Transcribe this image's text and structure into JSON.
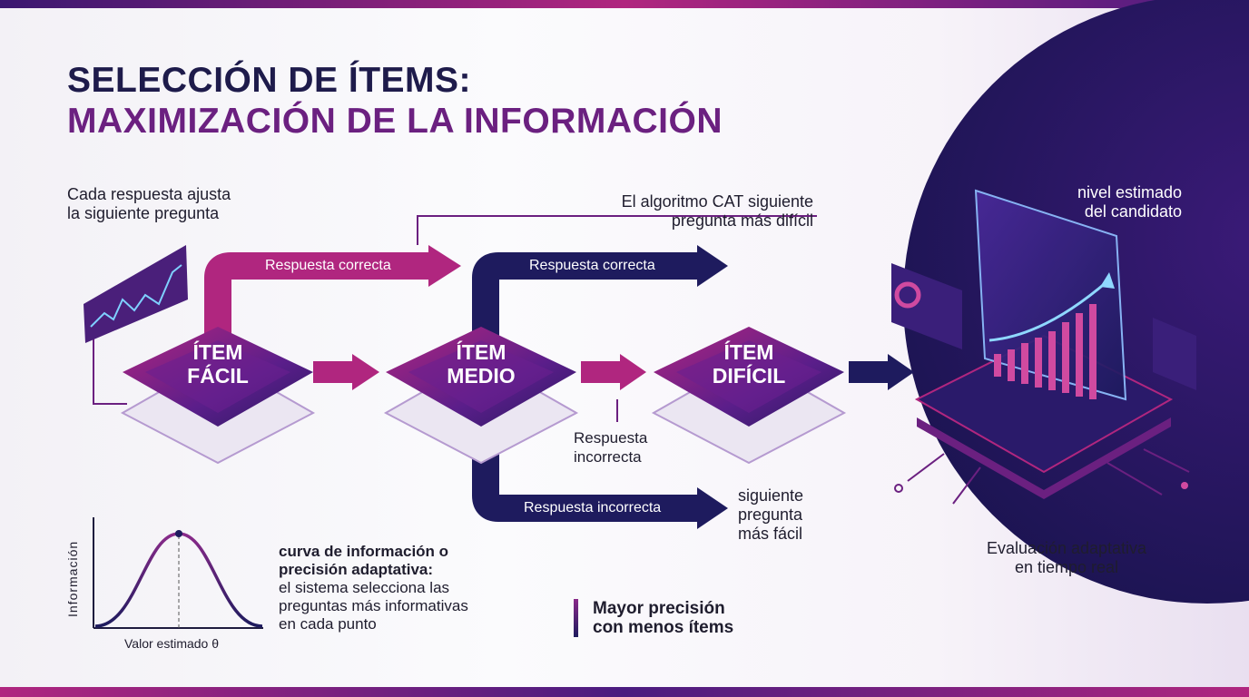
{
  "title": {
    "line1": "SELECCIÓN DE ÍTEMS:",
    "line2": "MAXIMIZACIÓN DE LA INFORMACIÓN"
  },
  "notes": {
    "left_top": [
      "Cada respuesta ajusta",
      "la siguiente pregunta"
    ],
    "algorithm": [
      "El algoritmo CAT siguiente",
      "pregunta más difícil"
    ],
    "level": [
      "nivel estimado",
      "del candidato"
    ],
    "incorrect_mid": [
      "Respuesta",
      "incorrecta"
    ],
    "easier": [
      "siguiente",
      "pregunta",
      "más fácil"
    ],
    "realtime": [
      "Evaluación adaptativa",
      "en tiempo real"
    ]
  },
  "arrows": {
    "correct_1": "Respuesta correcta",
    "correct_2": "Respuesta correcta",
    "incorrect": "Respuesta incorrecta"
  },
  "items": [
    {
      "line1": "ÍTEM",
      "line2": "FÁCIL"
    },
    {
      "line1": "ÍTEM",
      "line2": "MEDIO"
    },
    {
      "line1": "ÍTEM",
      "line2": "DIFÍCIL"
    }
  ],
  "curve": {
    "ylabel": "Información",
    "xlabel": "Valor estimado θ",
    "caption_bold": [
      "curva de información o",
      "precisión adaptativa:"
    ],
    "caption": [
      "el sistema selecciona las",
      "preguntas más informativas",
      "en cada punto"
    ]
  },
  "highlight": [
    "Mayor precisión",
    "con menos ítems"
  ],
  "colors": {
    "navy": "#1e1b5e",
    "magenta": "#b0267f",
    "purple": "#6b2080"
  }
}
